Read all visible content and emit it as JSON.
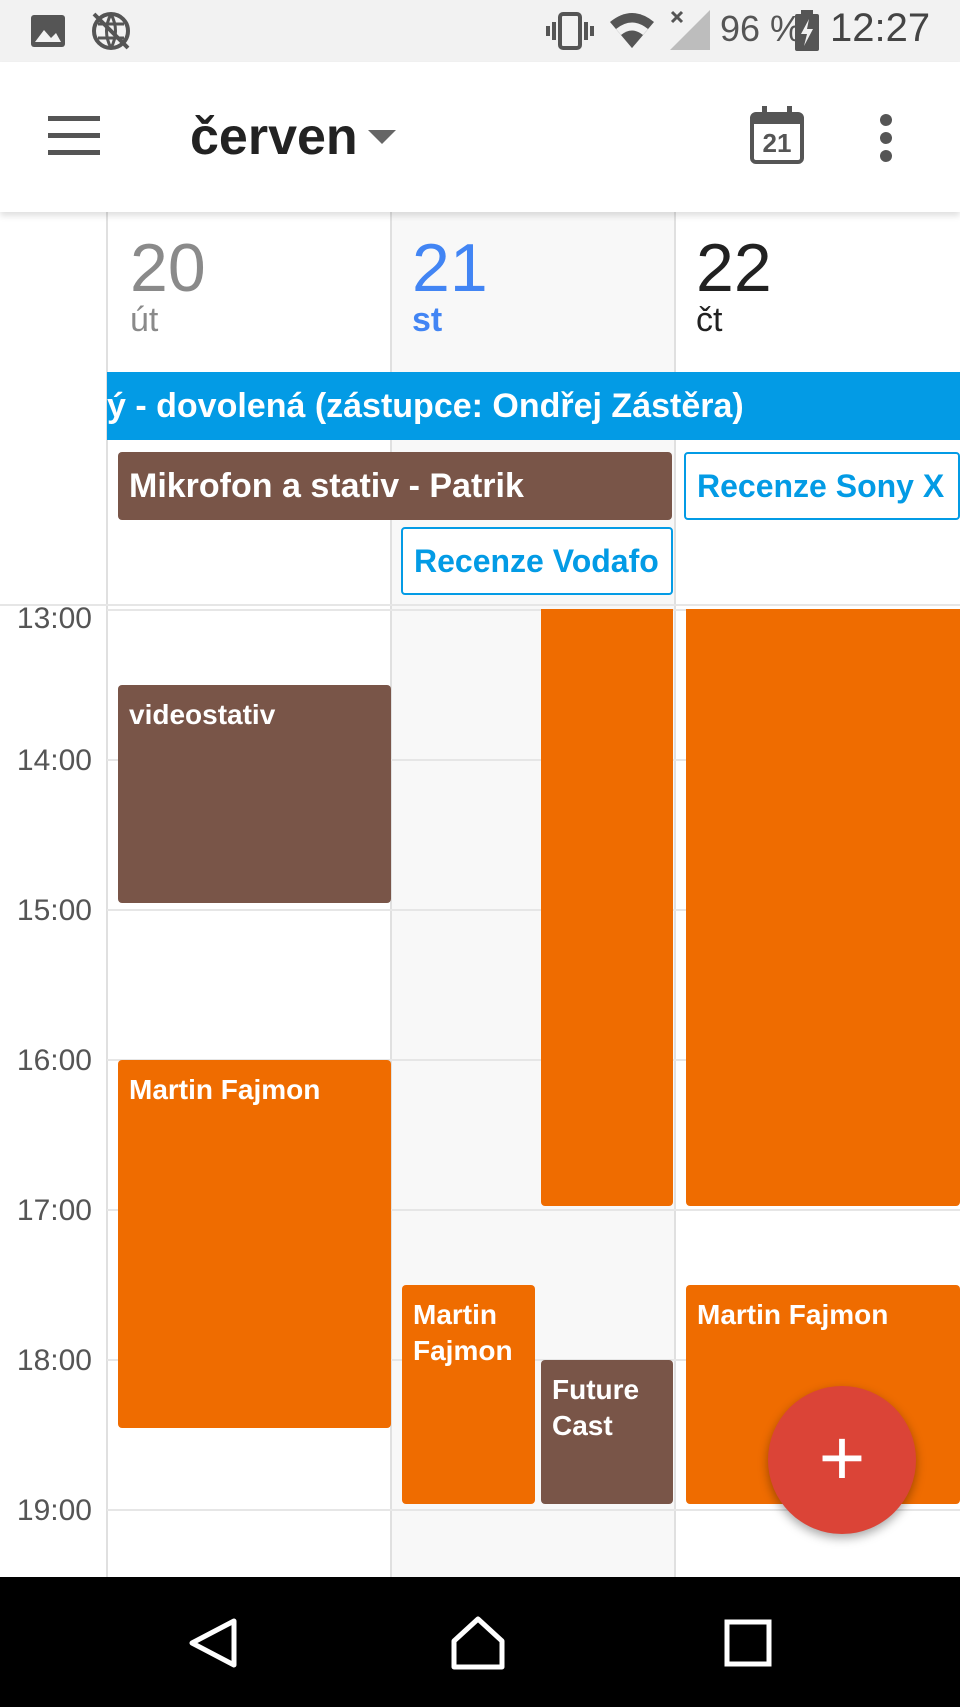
{
  "status_bar": {
    "battery": "96 %",
    "time": "12:27",
    "icons": [
      "image-icon",
      "vpn-globe-icon",
      "vibrate-icon",
      "wifi-icon",
      "signal-icon",
      "battery-charging-icon"
    ]
  },
  "app_bar": {
    "month": "červen",
    "menu_icon": "hamburger-menu-icon",
    "today_icon_number": "21",
    "more_icon": "more-vert-icon"
  },
  "days": [
    {
      "number": "20",
      "name": "út",
      "color": "#8a8a8a"
    },
    {
      "number": "21",
      "name": "st",
      "color": "#4285f4"
    },
    {
      "number": "22",
      "name": "čt",
      "color": "#212121"
    }
  ],
  "all_day_events": {
    "vacation": "ý - dovolená (zástupce: Ondřej Zástěra)",
    "mikrofon": "Mikrofon a stativ - Patrik",
    "recenze_sony": "Recenze Sony X",
    "recenze_vodafone": "Recenze Vodafo"
  },
  "hours": [
    "13:00",
    "14:00",
    "15:00",
    "16:00",
    "17:00",
    "18:00",
    "19:00"
  ],
  "events": {
    "videostativ": "videostativ",
    "martin_fajmon_20": "Martin Fajmon",
    "martin_fajmon_21": "Martin Fajmon",
    "future_cast": "Future Cast",
    "martin_fajmon_22": "Martin Fajmon"
  },
  "colors": {
    "orange": "#ef6c00",
    "brown": "#795548",
    "blue": "#039be5",
    "fab": "#db4437"
  },
  "fab": {
    "label": "+"
  }
}
